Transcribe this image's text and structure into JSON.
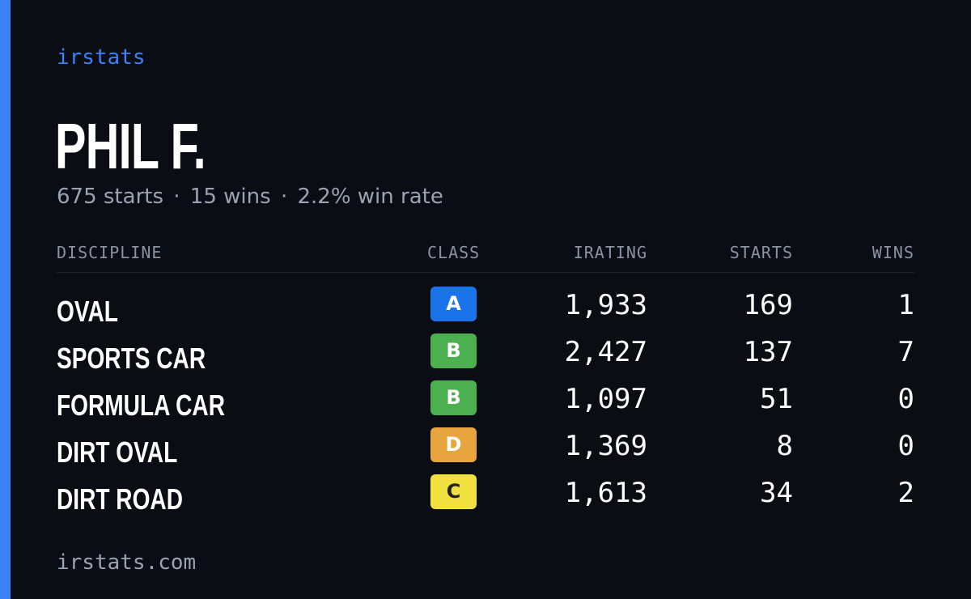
{
  "brand": "irstats",
  "driver": {
    "name": "PHIL F.",
    "starts": "675 starts",
    "wins": "15 wins",
    "win_rate": "2.2% win rate",
    "separator": "·"
  },
  "table": {
    "headers": {
      "discipline": "DISCIPLINE",
      "class": "CLASS",
      "irating": "IRATING",
      "starts": "STARTS",
      "wins": "WINS"
    },
    "rows": [
      {
        "discipline": "OVAL",
        "class": "A",
        "class_color": "#1a73e8",
        "class_text_color": "#ffffff",
        "irating": "1,933",
        "starts": "169",
        "wins": "1"
      },
      {
        "discipline": "SPORTS CAR",
        "class": "B",
        "class_color": "#4caf50",
        "class_text_color": "#ffffff",
        "irating": "2,427",
        "starts": "137",
        "wins": "7"
      },
      {
        "discipline": "FORMULA CAR",
        "class": "B",
        "class_color": "#4caf50",
        "class_text_color": "#ffffff",
        "irating": "1,097",
        "starts": "51",
        "wins": "0"
      },
      {
        "discipline": "DIRT OVAL",
        "class": "D",
        "class_color": "#e8a53f",
        "class_text_color": "#ffffff",
        "irating": "1,369",
        "starts": "8",
        "wins": "0"
      },
      {
        "discipline": "DIRT ROAD",
        "class": "C",
        "class_color": "#f0e040",
        "class_text_color": "#222222",
        "irating": "1,613",
        "starts": "34",
        "wins": "2"
      }
    ]
  },
  "footer": "irstats.com",
  "colors": {
    "accent": "#3b82f6",
    "background": "#0a0d14",
    "muted": "#9aa3b2"
  }
}
